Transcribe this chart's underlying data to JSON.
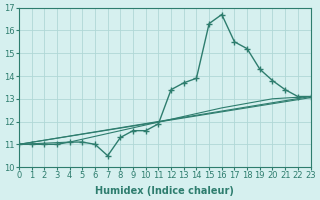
{
  "xlabel": "Humidex (Indice chaleur)",
  "xlim": [
    0,
    23
  ],
  "ylim": [
    10,
    17
  ],
  "yticks": [
    10,
    11,
    12,
    13,
    14,
    15,
    16,
    17
  ],
  "xticks": [
    0,
    1,
    2,
    3,
    4,
    5,
    6,
    7,
    8,
    9,
    10,
    11,
    12,
    13,
    14,
    15,
    16,
    17,
    18,
    19,
    20,
    21,
    22,
    23
  ],
  "bg_color": "#d6f0ef",
  "grid_color": "#b0d8d6",
  "line_color": "#2e7d6e",
  "line1_x": [
    0,
    1,
    2,
    3,
    4,
    5,
    6,
    7,
    8,
    9,
    10,
    11,
    12,
    13,
    14,
    15,
    16,
    17,
    18,
    19,
    20,
    21,
    22,
    23
  ],
  "line1_y": [
    11.0,
    11.0,
    11.0,
    11.0,
    11.1,
    11.1,
    11.0,
    10.5,
    11.3,
    11.6,
    11.6,
    11.9,
    13.4,
    13.7,
    13.9,
    16.3,
    16.7,
    15.5,
    15.2,
    14.3,
    13.8,
    13.4,
    13.1,
    13.1
  ],
  "line2_x": [
    0,
    23
  ],
  "line2_y": [
    11.0,
    13.1
  ],
  "line3_x": [
    0,
    23
  ],
  "line3_y": [
    11.0,
    13.05
  ],
  "line4_x": [
    0,
    4,
    8,
    12,
    16,
    20,
    23
  ],
  "line4_y": [
    11.0,
    11.1,
    11.6,
    12.1,
    12.6,
    13.0,
    13.1
  ]
}
